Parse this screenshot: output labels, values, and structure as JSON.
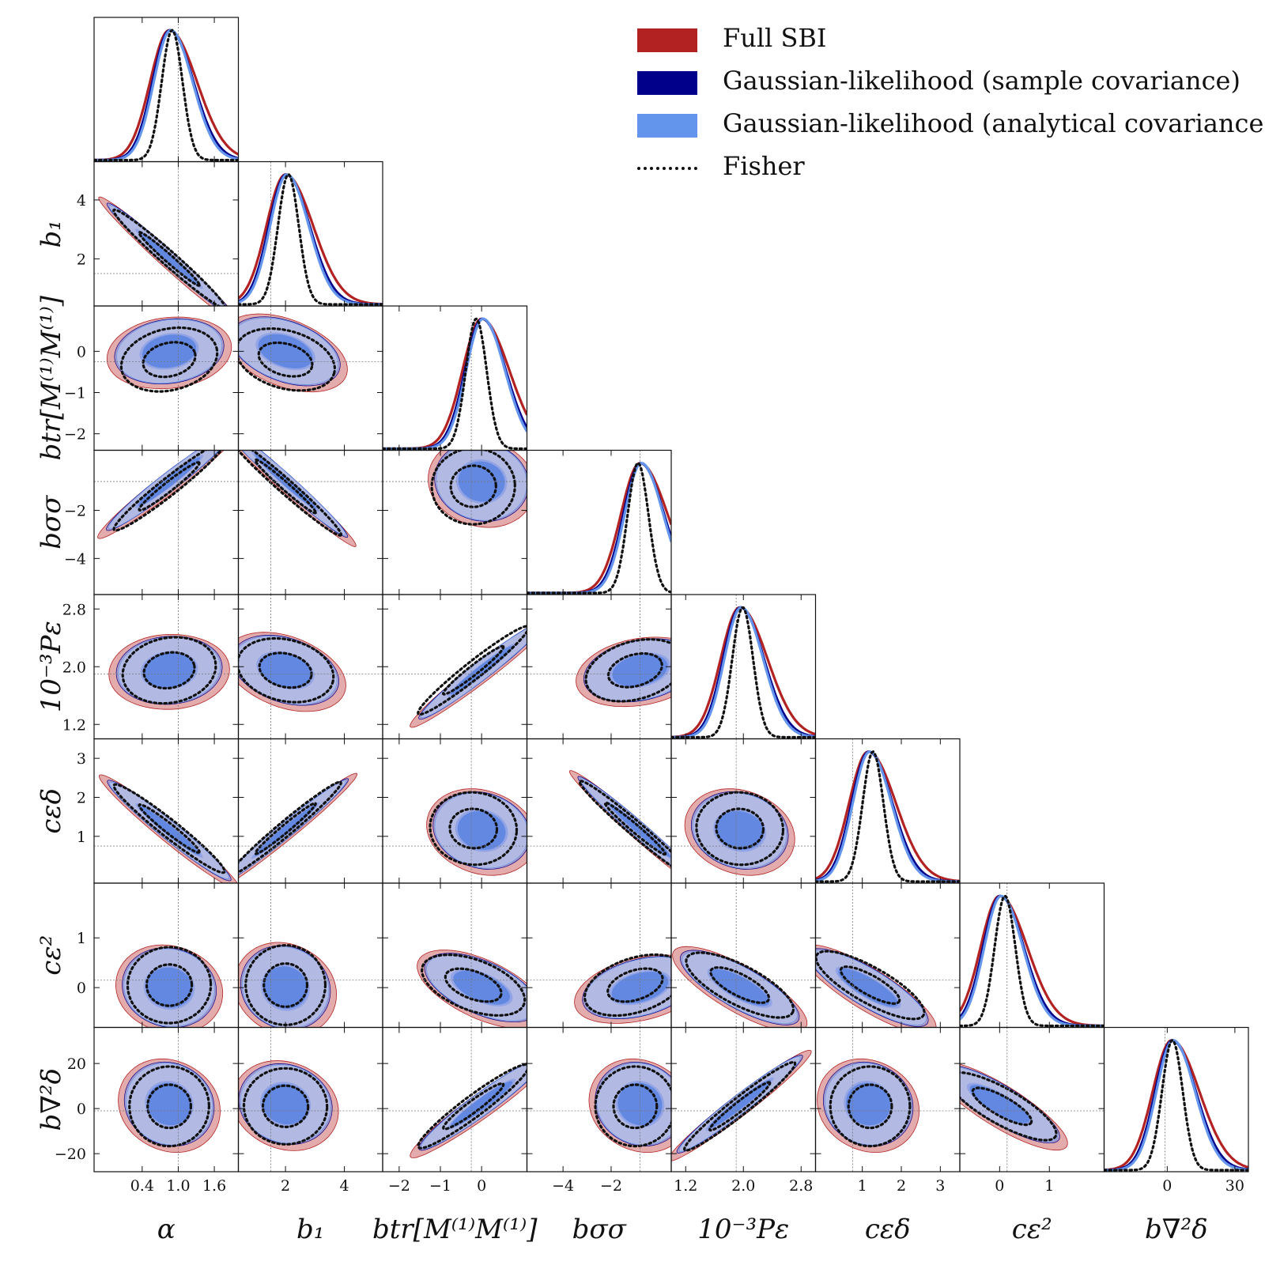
{
  "chart_data": {
    "type": "corner",
    "title": "",
    "parameters": [
      {
        "name": "alpha",
        "label": "α",
        "ticks": [
          "0.4",
          "1.0",
          "1.6"
        ],
        "tick_values": [
          0.4,
          1.0,
          1.6
        ],
        "range": [
          -0.4,
          2.0
        ],
        "fiducial": 1.0,
        "peak": 0.85,
        "fisher_peak": 0.85
      },
      {
        "name": "b1",
        "label": "b₁",
        "ticks": [
          "2",
          "4"
        ],
        "tick_values": [
          2,
          4
        ],
        "range": [
          0.4,
          5.3
        ],
        "fiducial": 1.5,
        "peak": 2.0,
        "fisher_peak": 2.0
      },
      {
        "name": "btr",
        "label": "btr[M⁽¹⁾M⁽¹⁾]",
        "ticks": [
          "−2",
          "−1",
          "0"
        ],
        "tick_values": [
          -2,
          -1,
          0
        ],
        "range": [
          -2.4,
          1.1
        ],
        "fiducial": -0.25,
        "peak": 0.0,
        "fisher_peak": -0.2
      },
      {
        "name": "bss",
        "label": "bσσ",
        "ticks": [
          "−4",
          "−2"
        ],
        "tick_values": [
          -4,
          -2
        ],
        "range": [
          -5.5,
          0.5
        ],
        "fiducial": -0.8,
        "peak": -0.8,
        "fisher_peak": -1.0
      },
      {
        "name": "Peps",
        "label": "10⁻³Pε",
        "ticks": [
          "1.2",
          "2.0",
          "2.8"
        ],
        "tick_values": [
          1.2,
          2.0,
          2.8
        ],
        "range": [
          1.0,
          3.0
        ],
        "fiducial": 1.9,
        "peak": 1.95,
        "fisher_peak": 1.95
      },
      {
        "name": "ced",
        "label": "cεδ",
        "ticks": [
          "1",
          "2",
          "3"
        ],
        "tick_values": [
          1,
          2,
          3
        ],
        "range": [
          -0.2,
          3.5
        ],
        "fiducial": 0.75,
        "peak": 1.15,
        "fisher_peak": 1.2
      },
      {
        "name": "ce2",
        "label": "cε²",
        "ticks": [
          "0",
          "1"
        ],
        "tick_values": [
          0,
          1
        ],
        "range": [
          -0.8,
          2.1
        ],
        "fiducial": 0.15,
        "peak": 0.0,
        "fisher_peak": 0.05
      },
      {
        "name": "bn2d",
        "label": "b∇²δ",
        "ticks": [
          "0",
          "30"
        ],
        "tick_values": [
          0,
          30
        ],
        "range": [
          -28,
          36
        ],
        "fiducial": -1.0,
        "peak": 2.0,
        "fisher_peak": 1.0
      }
    ],
    "row_tick_overrides": {
      "b1": [
        "2",
        "4"
      ],
      "btr": [
        "0",
        "−1",
        "−2"
      ],
      "bss": [
        "−2",
        "−4"
      ],
      "Peps": [
        "2.8",
        "2.0",
        "1.2"
      ],
      "ced": [
        "3",
        "2",
        "1"
      ],
      "ce2": [
        "1",
        "0"
      ],
      "bn2d": [
        "20",
        "0",
        "−20"
      ]
    },
    "y_tick_values": {
      "b1": [
        2,
        4
      ],
      "btr": [
        0,
        -1,
        -2
      ],
      "bss": [
        -2,
        -4
      ],
      "Peps": [
        2.8,
        2.0,
        1.2
      ],
      "ced": [
        3,
        2,
        1
      ],
      "ce2": [
        1,
        0
      ],
      "bn2d": [
        20,
        0,
        -20
      ]
    },
    "series": [
      {
        "name": "Full SBI",
        "color": "#b22222",
        "fill": "#d98f8f"
      },
      {
        "name": "Gaussian-likelihood (sample covariance)",
        "color": "#00008b",
        "fill": "#8c8fd6"
      },
      {
        "name": "Gaussian-likelihood (analytical covariance)",
        "color": "#6495ed",
        "fill": "#b3c4ee"
      },
      {
        "name": "Fisher",
        "color": "#111111",
        "style": "dotted"
      }
    ],
    "correlations": {
      "b1|alpha": -0.95,
      "btr|alpha": 0.25,
      "btr|b1": -0.3,
      "bss|alpha": 0.85,
      "bss|b1": -0.95,
      "bss|btr": 0.05,
      "Peps|alpha": 0.2,
      "Peps|b1": -0.25,
      "Peps|btr": 0.85,
      "Peps|bss": 0.3,
      "ced|alpha": -0.85,
      "ced|b1": 0.9,
      "ced|btr": -0.1,
      "ced|bss": -0.92,
      "ced|Peps": -0.1,
      "ce2|alpha": 0.05,
      "ce2|b1": 0.0,
      "ce2|btr": -0.4,
      "ce2|bss": 0.35,
      "ce2|Peps": -0.55,
      "ce2|ced": -0.6,
      "bn2d|alpha": 0.0,
      "bn2d|b1": -0.05,
      "bn2d|btr": 0.8,
      "bn2d|bss": 0.0,
      "bn2d|Peps": 0.85,
      "bn2d|ced": 0.0,
      "bn2d|ce2": -0.6
    }
  },
  "legend": {
    "items": [
      {
        "label": "Full SBI",
        "color": "#b22222"
      },
      {
        "label": "Gaussian-likelihood (sample covariance)",
        "color": "#00008b"
      },
      {
        "label": "Gaussian-likelihood (analytical covariance)",
        "color": "#6495ed"
      },
      {
        "label": "Fisher",
        "color": "#111111"
      }
    ]
  }
}
